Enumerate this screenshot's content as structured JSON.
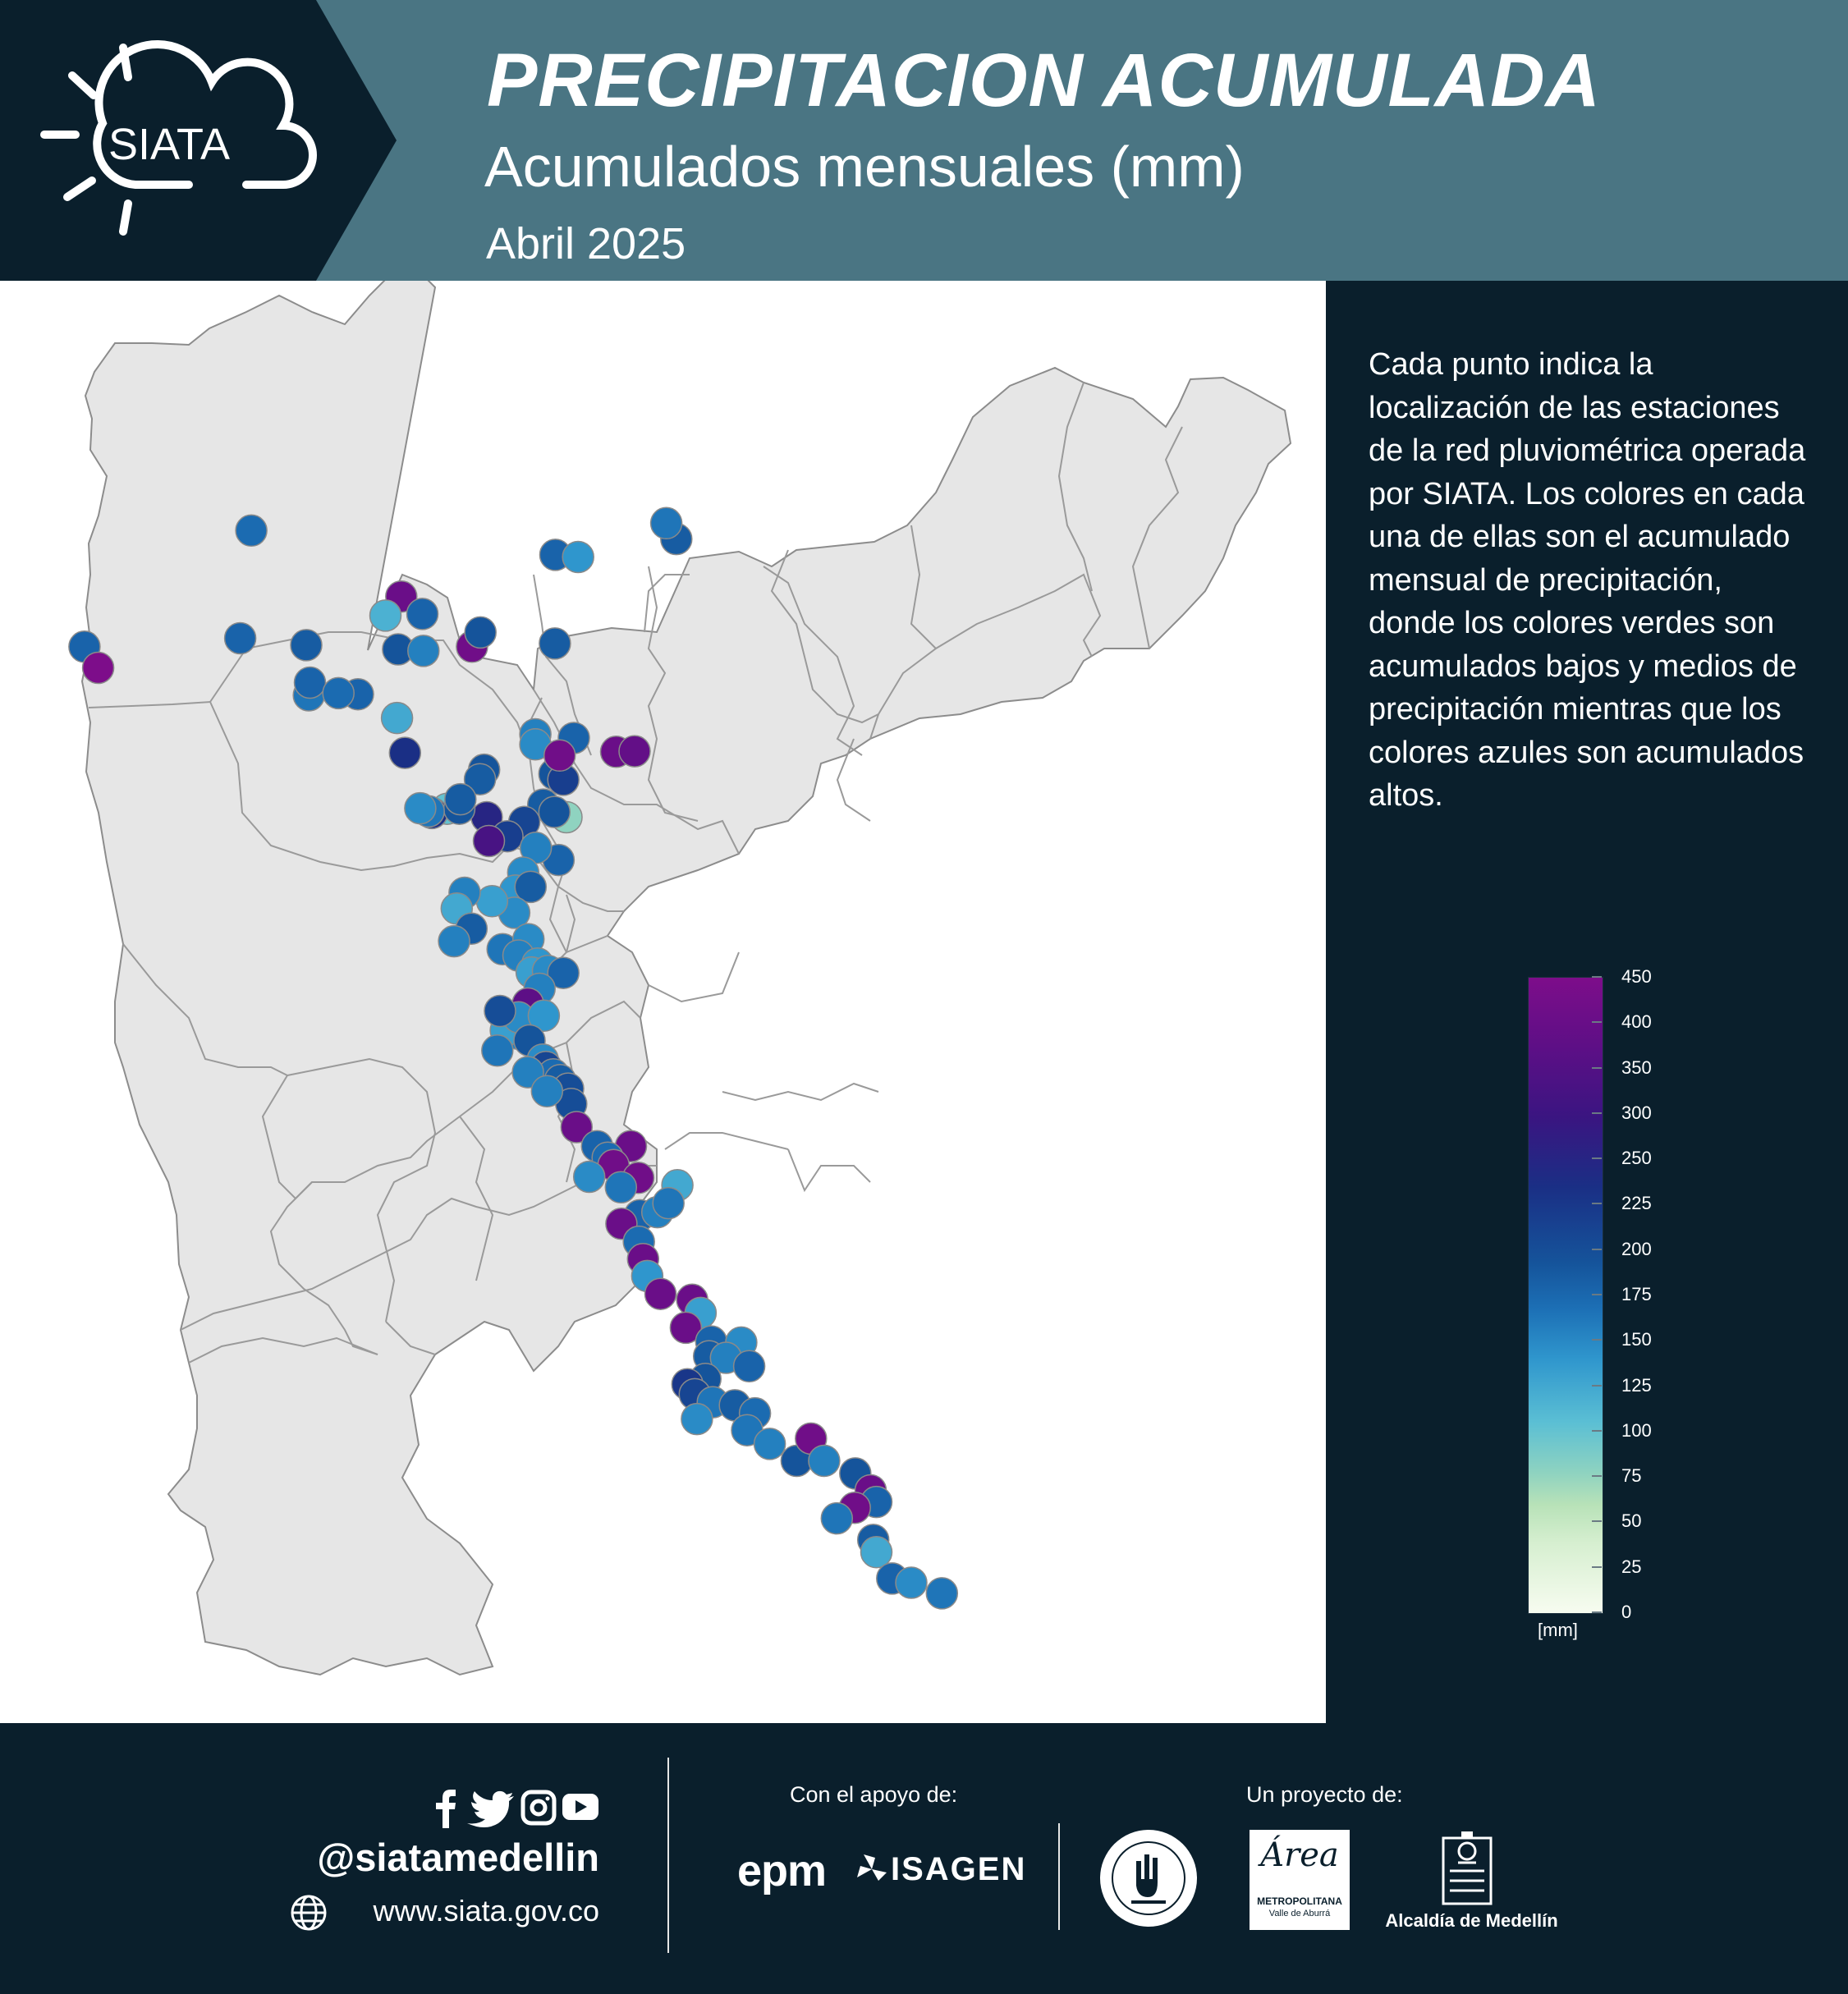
{
  "header": {
    "title": "PRECIPITACION ACUMULADA",
    "subtitle": "Acumulados mensuales (mm)",
    "month": "Abril 2025",
    "logo_text": "SIATA"
  },
  "panel": {
    "description": "Cada  punto indica la localización de las estaciones de la red pluviométrica operada por SIATA. Los colores en cada una de ellas son el acumulado mensual de precipitación, donde los colores verdes son acumulados bajos y medios de precipitación mientras que los colores azules son acumulados altos.",
    "colorbar": {
      "ticks": [
        "450",
        "400",
        "350",
        "300",
        "250",
        "225",
        "200",
        "175",
        "150",
        "125",
        "100",
        "75",
        "50",
        "25",
        "0"
      ],
      "unit": "[mm]",
      "min": 0,
      "max": 450
    }
  },
  "colors": {
    "header_bg": "#4a7583",
    "dark_bg": "#0a1f2c",
    "map_land": "#e6e6e6"
  },
  "footer": {
    "handle": "@siatamedellin",
    "website": "www.siata.gov.co",
    "support_label": "Con el apoyo de:",
    "project_label": "Un proyecto de:",
    "sponsor_epm": "epm",
    "sponsor_isagen": "ISAGEN",
    "area_script": "Área",
    "area_line1": "METROPOLITANA",
    "area_line2": "Valle de Aburrá",
    "alcaldia": "Alcaldía de Medellín",
    "social_icons": [
      "facebook-icon",
      "twitter-icon",
      "instagram-icon",
      "youtube-icon"
    ]
  },
  "map": {
    "stations_mm": [
      220,
      230,
      450,
      240,
      210,
      230,
      240,
      420,
      230,
      150,
      250,
      200,
      430,
      250,
      240,
      210,
      230,
      160,
      230,
      220,
      230,
      230,
      180,
      250,
      300,
      200,
      190,
      130,
      100,
      280,
      430,
      420,
      410,
      250,
      240,
      300,
      320,
      250,
      240,
      210,
      190,
      240,
      250,
      270,
      280,
      370,
      230,
      200,
      190,
      180,
      240,
      190,
      170,
      200,
      160,
      240,
      200,
      210,
      190,
      200,
      180,
      170,
      190,
      230,
      200,
      400,
      200,
      170,
      190,
      260,
      180,
      250,
      210,
      190,
      270,
      220,
      240,
      260,
      260,
      200,
      200,
      420,
      420,
      230,
      220,
      430,
      430,
      190,
      210,
      230,
      420,
      200,
      160,
      210,
      220,
      420,
      180,
      420,
      420,
      170,
      420,
      230,
      190,
      240,
      200,
      230,
      250,
      290,
      270,
      210,
      190,
      240,
      220,
      210,
      200,
      250,
      430,
      200,
      250,
      420,
      230,
      430,
      210,
      240,
      160,
      230,
      190,
      210,
      220
    ]
  }
}
